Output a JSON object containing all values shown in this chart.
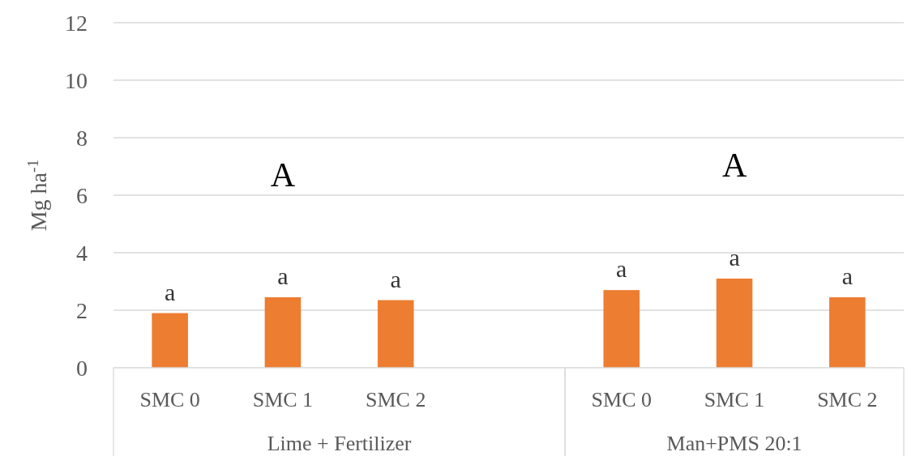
{
  "chart_data": {
    "type": "bar",
    "ylabel": "Mg ha$^{-1}$",
    "categories": [
      "SMC 0",
      "SMC 1",
      "SMC 2",
      null,
      "SMC 0",
      "SMC 1",
      "SMC 2"
    ],
    "values": [
      1.9,
      2.45,
      2.35,
      null,
      2.7,
      3.1,
      2.45
    ],
    "value_labels": [
      "a",
      "a",
      "a",
      null,
      "a",
      "a",
      "a"
    ],
    "color": "#ed7d31",
    "ylim": [
      0,
      12
    ],
    "yticks": [
      0,
      2,
      4,
      6,
      8,
      10,
      12
    ],
    "grid": "y",
    "annotations": [
      "A",
      "A",
      "Lime + Fertilizer",
      "Man+PMS 20:1"
    ]
  }
}
